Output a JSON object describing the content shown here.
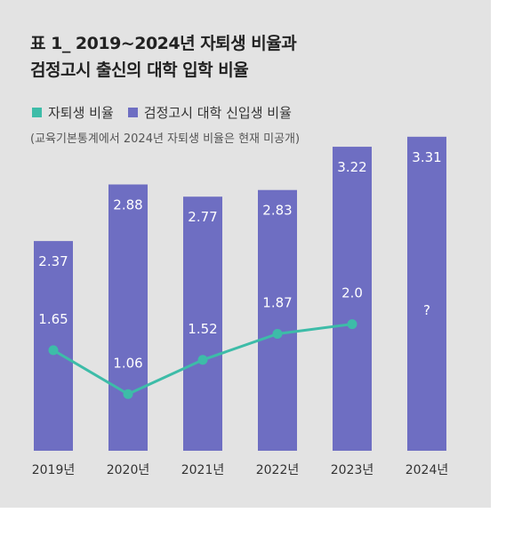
{
  "title_line1": "표 1_ 2019~2024년 자퇴생 비율과",
  "title_line2": "검정고시 출신의 대학 입학 비율",
  "legend": {
    "line_label": "자퇴생 비율",
    "bar_label": "검정고시 대학 신입생 비율"
  },
  "note": "(교육기본통계에서 2024년 자퇴생 비율은 현재 미공개)",
  "colors": {
    "background": "#e3e3e3",
    "bar": "#6e6ec2",
    "line": "#3dbca8"
  },
  "chart_data": {
    "type": "bar",
    "categories": [
      "2019년",
      "2020년",
      "2021년",
      "2022년",
      "2023년",
      "2024년"
    ],
    "series": [
      {
        "name": "검정고시 대학 신입생 비율",
        "type": "bar",
        "values": [
          2.37,
          2.88,
          2.77,
          2.83,
          3.22,
          3.31
        ],
        "labels": [
          "2.37",
          "2.88",
          "2.77",
          "2.83",
          "3.22",
          "3.31"
        ]
      },
      {
        "name": "자퇴생 비율",
        "type": "line",
        "values": [
          1.65,
          1.06,
          1.52,
          1.87,
          2.0,
          null
        ],
        "labels": [
          "1.65",
          "1.06",
          "1.52",
          "1.87",
          "2.0",
          "?"
        ]
      }
    ],
    "legend_position": "top-left",
    "grid": false
  }
}
